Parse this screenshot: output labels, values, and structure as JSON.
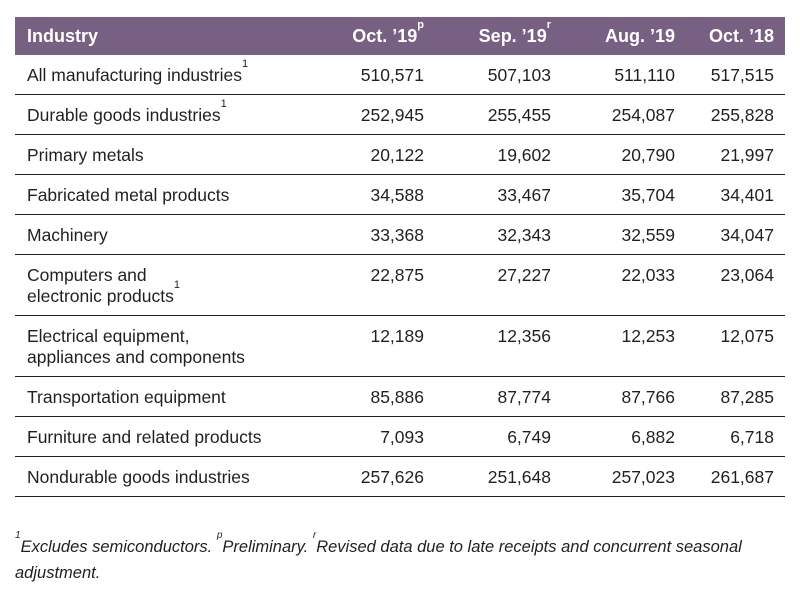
{
  "table": {
    "headers": [
      {
        "label": "Industry",
        "sup": ""
      },
      {
        "label": "Oct. ’19",
        "sup": "p"
      },
      {
        "label": "Sep. ’19",
        "sup": "r"
      },
      {
        "label": "Aug. ’19",
        "sup": ""
      },
      {
        "label": "Oct. ’18",
        "sup": ""
      }
    ],
    "rows": [
      {
        "industry": [
          "All manufacturing industries"
        ],
        "sup": "1",
        "values": [
          "510,571",
          "507,103",
          "511,110",
          "517,515"
        ]
      },
      {
        "industry": [
          "Durable goods industries"
        ],
        "sup": "1",
        "values": [
          "252,945",
          "255,455",
          "254,087",
          "255,828"
        ]
      },
      {
        "industry": [
          "Primary metals"
        ],
        "sup": "",
        "values": [
          "20,122",
          "19,602",
          "20,790",
          "21,997"
        ]
      },
      {
        "industry": [
          "Fabricated metal products"
        ],
        "sup": "",
        "values": [
          "34,588",
          "33,467",
          "35,704",
          "34,401"
        ]
      },
      {
        "industry": [
          "Machinery"
        ],
        "sup": "",
        "values": [
          "33,368",
          "32,343",
          "32,559",
          "34,047"
        ]
      },
      {
        "industry": [
          "Computers and",
          "electronic products"
        ],
        "sup": "1",
        "values": [
          "22,875",
          "27,227",
          "22,033",
          "23,064"
        ]
      },
      {
        "industry": [
          "Electrical equipment,",
          "appliances and components"
        ],
        "sup": "",
        "values": [
          "12,189",
          "12,356",
          "12,253",
          "12,075"
        ]
      },
      {
        "industry": [
          "Transportation equipment"
        ],
        "sup": "",
        "values": [
          "85,886",
          "87,774",
          "87,766",
          "87,285"
        ]
      },
      {
        "industry": [
          "Furniture and related products"
        ],
        "sup": "",
        "values": [
          "7,093",
          "6,749",
          "6,882",
          "6,718"
        ]
      },
      {
        "industry": [
          "Nondurable goods industries"
        ],
        "sup": "",
        "values": [
          "257,626",
          "251,648",
          "257,023",
          "261,687"
        ]
      }
    ]
  },
  "footnote": {
    "sup1": "1",
    "text1": "Excludes semiconductors. ",
    "sup2": "p",
    "text2": "Preliminary. ",
    "sup3": "r",
    "text3": "Revised data due to late receipts and concurrent seasonal adjustment."
  },
  "colors": {
    "header_bg": "#786083",
    "header_text": "#ffffff",
    "text": "#231f20",
    "rule": "#231f20"
  }
}
